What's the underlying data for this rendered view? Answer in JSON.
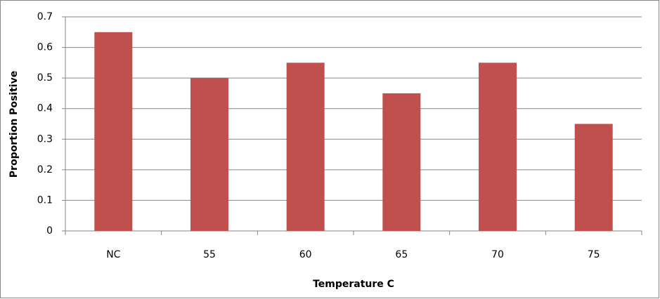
{
  "chart_data": {
    "type": "bar",
    "x_label": "Temperature C",
    "y_label": "Proportion Positive",
    "categories": [
      "NC",
      "55",
      "60",
      "65",
      "70",
      "75"
    ],
    "values": [
      0.65,
      0.5,
      0.55,
      0.45,
      0.55,
      0.35
    ],
    "color": "#c0504d",
    "ylim": [
      0,
      0.7
    ],
    "yticks": [
      0,
      0.1,
      0.2,
      0.3,
      0.4,
      0.5,
      0.6,
      0.7
    ],
    "grid": true
  }
}
